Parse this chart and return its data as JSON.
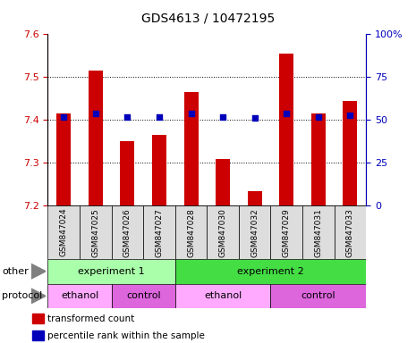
{
  "title": "GDS4613 / 10472195",
  "samples": [
    "GSM847024",
    "GSM847025",
    "GSM847026",
    "GSM847027",
    "GSM847028",
    "GSM847030",
    "GSM847032",
    "GSM847029",
    "GSM847031",
    "GSM847033"
  ],
  "bar_values": [
    7.415,
    7.515,
    7.35,
    7.365,
    7.465,
    7.31,
    7.235,
    7.555,
    7.415,
    7.445
  ],
  "percentile_values": [
    52,
    54,
    52,
    52,
    54,
    52,
    51,
    54,
    52,
    53
  ],
  "ylim_left": [
    7.2,
    7.6
  ],
  "ylim_right": [
    0,
    100
  ],
  "yticks_left": [
    7.2,
    7.3,
    7.4,
    7.5,
    7.6
  ],
  "yticks_right": [
    0,
    25,
    50,
    75,
    100
  ],
  "bar_color": "#cc0000",
  "percentile_color": "#0000bb",
  "bar_bottom": 7.2,
  "other_groups": [
    {
      "label": "experiment 1",
      "start": 0,
      "end": 4,
      "color": "#aaffaa"
    },
    {
      "label": "experiment 2",
      "start": 4,
      "end": 10,
      "color": "#44dd44"
    }
  ],
  "protocol_groups": [
    {
      "label": "ethanol",
      "start": 0,
      "end": 2,
      "color": "#ffaaff"
    },
    {
      "label": "control",
      "start": 2,
      "end": 4,
      "color": "#dd66dd"
    },
    {
      "label": "ethanol",
      "start": 4,
      "end": 7,
      "color": "#ffaaff"
    },
    {
      "label": "control",
      "start": 7,
      "end": 10,
      "color": "#dd66dd"
    }
  ],
  "legend_items": [
    {
      "label": "transformed count",
      "color": "#cc0000"
    },
    {
      "label": "percentile rank within the sample",
      "color": "#0000bb"
    }
  ],
  "other_label": "other",
  "protocol_label": "protocol",
  "tick_color_left": "#cc0000",
  "tick_color_right": "#0000bb",
  "xlabel_bg": "#dddddd",
  "grid_color": "#000000",
  "background_color": "#ffffff",
  "plot_bg": "#ffffff"
}
